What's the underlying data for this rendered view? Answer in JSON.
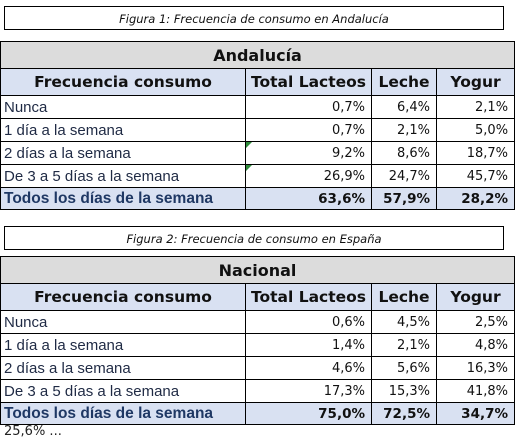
{
  "figure1": {
    "caption": "Figura 1: Frecuencia de consumo en Andalucía",
    "region": "Andalucía",
    "headers": [
      "Frecuencia consumo",
      "Total Lacteos",
      "Leche",
      "Yogur"
    ],
    "rows": [
      [
        "Nunca",
        "0,7%",
        "6,4%",
        "2,1%"
      ],
      [
        "1 día a la semana",
        "0,7%",
        "2,1%",
        "5,0%"
      ],
      [
        "2 días a la semana",
        "9,2%",
        "8,6%",
        "18,7%"
      ],
      [
        "De 3 a 5 días a la semana",
        "26,9%",
        "24,7%",
        "45,7%"
      ]
    ],
    "total": [
      "Todos los días de la semana",
      "63,6%",
      "57,9%",
      "28,2%"
    ]
  },
  "figure2": {
    "caption": "Figura 2: Frecuencia de consumo en España",
    "region": "Nacional",
    "headers": [
      "Frecuencia consumo",
      "Total Lacteos",
      "Leche",
      "Yogur"
    ],
    "rows": [
      [
        "Nunca",
        "0,6%",
        "4,5%",
        "2,5%"
      ],
      [
        "1 día a la semana",
        "1,4%",
        "2,1%",
        "4,8%"
      ],
      [
        "2 días a la semana",
        "4,6%",
        "5,6%",
        "16,3%"
      ],
      [
        "De 3 a 5 días a la semana",
        "17,3%",
        "15,3%",
        "41,8%"
      ]
    ],
    "total": [
      "Todos los días de la semana",
      "75,0%",
      "72,5%",
      "34,7%"
    ]
  },
  "footer_text": "25,6% ..."
}
